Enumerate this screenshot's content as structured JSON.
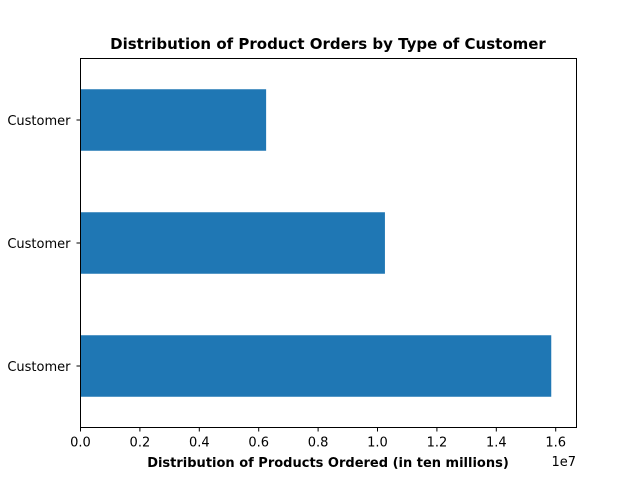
{
  "chart_data": {
    "type": "bar",
    "orientation": "horizontal",
    "title": "Distribution of Product Orders by Type of Customer",
    "xlabel": "Distribution of Products Ordered (in ten millions)",
    "ylabel": "",
    "x_offset_label": "1e7",
    "categories": [
      "Customer",
      "Customer",
      "Customer"
    ],
    "values": [
      15850000,
      10250000,
      6250000
    ],
    "xlim": [
      0,
      16700000
    ],
    "xticks": [
      0,
      0.2,
      0.4,
      0.6,
      0.8,
      1.0,
      1.2,
      1.4,
      1.6
    ],
    "xtick_labels": [
      "0.0",
      "0.2",
      "0.4",
      "0.6",
      "0.8",
      "1.0",
      "1.2",
      "1.4",
      "1.6"
    ],
    "bar_color": "#1f77b4",
    "grid": false,
    "legend": "none"
  }
}
